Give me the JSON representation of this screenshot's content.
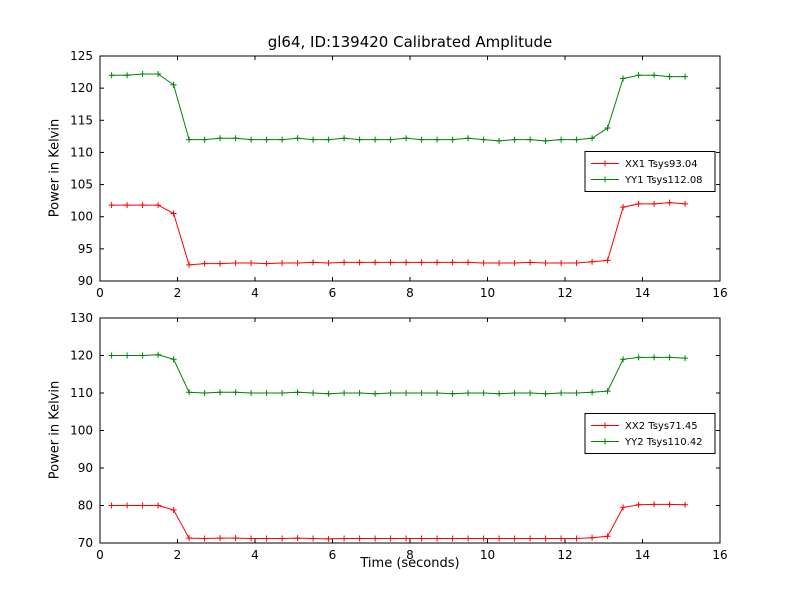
{
  "figure": {
    "background": "#ffffff",
    "frame_color": "#000000"
  },
  "chart_data": [
    {
      "type": "line",
      "title": "gl64, ID:139420 Calibrated Amplitude",
      "xlabel": "",
      "ylabel": "Power in Kelvin",
      "xlim": [
        0,
        16
      ],
      "ylim": [
        90,
        125
      ],
      "xticks": [
        0,
        2,
        4,
        6,
        8,
        10,
        12,
        14,
        16
      ],
      "yticks": [
        90,
        95,
        100,
        105,
        110,
        115,
        120,
        125
      ],
      "grid": false,
      "marker": "+",
      "legend_position": "center right",
      "x": [
        0.3,
        0.7,
        1.1,
        1.5,
        1.9,
        2.3,
        2.7,
        3.1,
        3.5,
        3.9,
        4.3,
        4.7,
        5.1,
        5.5,
        5.9,
        6.3,
        6.7,
        7.1,
        7.5,
        7.9,
        8.3,
        8.7,
        9.1,
        9.5,
        9.9,
        10.3,
        10.7,
        11.1,
        11.5,
        11.9,
        12.3,
        12.7,
        13.1,
        13.5,
        13.9,
        14.3,
        14.7,
        15.1
      ],
      "series": [
        {
          "name": "XX1 Tsys93.04",
          "color": "#ff0000",
          "values": [
            101.8,
            101.8,
            101.8,
            101.8,
            100.5,
            92.5,
            92.7,
            92.7,
            92.8,
            92.8,
            92.7,
            92.8,
            92.8,
            92.9,
            92.8,
            92.9,
            92.9,
            92.9,
            92.9,
            92.9,
            92.9,
            92.9,
            92.9,
            92.9,
            92.8,
            92.8,
            92.8,
            92.9,
            92.8,
            92.8,
            92.8,
            93.0,
            93.2,
            101.5,
            102.0,
            102.0,
            102.2,
            102.0
          ]
        },
        {
          "name": "YY1 Tsys112.08",
          "color": "#008000",
          "values": [
            122.0,
            122.0,
            122.2,
            122.2,
            120.5,
            112.0,
            112.0,
            112.2,
            112.2,
            112.0,
            112.0,
            112.0,
            112.2,
            112.0,
            112.0,
            112.2,
            112.0,
            112.0,
            112.0,
            112.2,
            112.0,
            112.0,
            112.0,
            112.2,
            112.0,
            111.8,
            112.0,
            112.0,
            111.8,
            112.0,
            112.0,
            112.2,
            113.8,
            121.5,
            122.0,
            122.0,
            121.8,
            121.8
          ]
        }
      ]
    },
    {
      "type": "line",
      "title": "",
      "xlabel": "Time (seconds)",
      "ylabel": "Power in Kelvin",
      "xlim": [
        0,
        16
      ],
      "ylim": [
        70,
        130
      ],
      "xticks": [
        0,
        2,
        4,
        6,
        8,
        10,
        12,
        14,
        16
      ],
      "yticks": [
        70,
        80,
        90,
        100,
        110,
        120,
        130
      ],
      "grid": false,
      "marker": "+",
      "legend_position": "center right",
      "x": [
        0.3,
        0.7,
        1.1,
        1.5,
        1.9,
        2.3,
        2.7,
        3.1,
        3.5,
        3.9,
        4.3,
        4.7,
        5.1,
        5.5,
        5.9,
        6.3,
        6.7,
        7.1,
        7.5,
        7.9,
        8.3,
        8.7,
        9.1,
        9.5,
        9.9,
        10.3,
        10.7,
        11.1,
        11.5,
        11.9,
        12.3,
        12.7,
        13.1,
        13.5,
        13.9,
        14.3,
        14.7,
        15.1
      ],
      "series": [
        {
          "name": "XX2 Tsys71.45",
          "color": "#ff0000",
          "values": [
            80.0,
            80.0,
            80.0,
            80.0,
            78.8,
            71.3,
            71.2,
            71.3,
            71.3,
            71.2,
            71.2,
            71.2,
            71.3,
            71.2,
            71.1,
            71.2,
            71.2,
            71.2,
            71.2,
            71.2,
            71.2,
            71.2,
            71.2,
            71.2,
            71.2,
            71.2,
            71.2,
            71.2,
            71.2,
            71.2,
            71.2,
            71.4,
            71.8,
            79.5,
            80.2,
            80.3,
            80.3,
            80.2
          ]
        },
        {
          "name": "YY2 Tsys110.42",
          "color": "#008000",
          "values": [
            120.0,
            120.0,
            120.0,
            120.2,
            119.0,
            110.2,
            110.0,
            110.2,
            110.2,
            110.0,
            110.0,
            110.0,
            110.2,
            110.0,
            109.8,
            110.0,
            110.0,
            109.8,
            110.0,
            110.0,
            110.0,
            110.0,
            109.8,
            110.0,
            110.0,
            109.8,
            110.0,
            110.0,
            109.8,
            110.0,
            110.0,
            110.2,
            110.5,
            119.0,
            119.5,
            119.5,
            119.5,
            119.3
          ]
        }
      ]
    }
  ]
}
